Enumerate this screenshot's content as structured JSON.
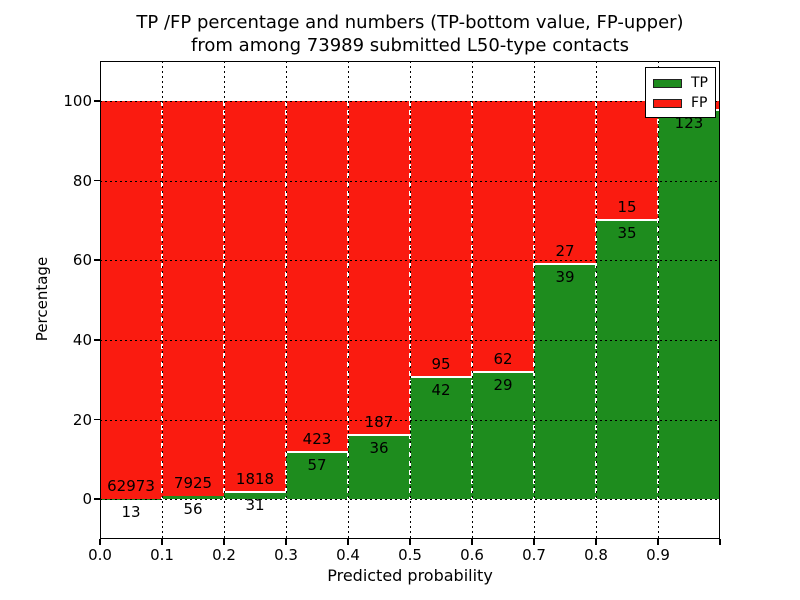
{
  "figure": {
    "title_line1": "TP /FP percentage and numbers (TP-bottom value, FP-upper)",
    "title_line2": "from among 73989 submitted L50-type contacts",
    "xlabel": "Predicted probability",
    "ylabel": "Percentage"
  },
  "legend": {
    "items": [
      {
        "label": "TP",
        "color": "#1e8c1e",
        "swatch": "tp-swatch"
      },
      {
        "label": "FP",
        "color": "#fa1b10",
        "swatch": "fp-swatch"
      }
    ],
    "position": "upper right"
  },
  "colors": {
    "tp": "#1e8c1e",
    "fp": "#fa1b10",
    "grid": "#000000",
    "frame": "#000000",
    "bar_edge": "#ffffff",
    "background": "#ffffff",
    "text": "#000000"
  },
  "chart_data": {
    "type": "bar",
    "stacked": true,
    "normalized_to_percent": true,
    "title": "TP /FP percentage and numbers (TP-bottom value, FP-upper) from among 73989 submitted L50-type contacts",
    "xlabel": "Predicted probability",
    "ylabel": "Percentage",
    "xlim": [
      0.0,
      1.0
    ],
    "ylim": [
      -10,
      110
    ],
    "yticks": [
      0,
      20,
      40,
      60,
      80,
      100
    ],
    "xtick_labels": [
      "0.0",
      "0.1",
      "0.2",
      "0.3",
      "0.4",
      "0.5",
      "0.6",
      "0.7",
      "0.8",
      "0.9"
    ],
    "grid": true,
    "legend_position": "upper right",
    "total_contacts": 73989,
    "series": [
      {
        "name": "TP",
        "color": "#1e8c1e"
      },
      {
        "name": "FP",
        "color": "#fa1b10"
      }
    ],
    "bins": [
      {
        "range": [
          0.0,
          0.1
        ],
        "tp": 13,
        "fp": 62973,
        "fp_label_visible": true
      },
      {
        "range": [
          0.1,
          0.2
        ],
        "tp": 56,
        "fp": 7925,
        "fp_label_visible": true
      },
      {
        "range": [
          0.2,
          0.3
        ],
        "tp": 31,
        "fp": 1818,
        "fp_label_visible": true
      },
      {
        "range": [
          0.3,
          0.4
        ],
        "tp": 57,
        "fp": 423,
        "fp_label_visible": true
      },
      {
        "range": [
          0.4,
          0.5
        ],
        "tp": 36,
        "fp": 187,
        "fp_label_visible": true
      },
      {
        "range": [
          0.5,
          0.6
        ],
        "tp": 42,
        "fp": 95,
        "fp_label_visible": true
      },
      {
        "range": [
          0.6,
          0.7
        ],
        "tp": 29,
        "fp": 62,
        "fp_label_visible": true
      },
      {
        "range": [
          0.7,
          0.8
        ],
        "tp": 39,
        "fp": 27,
        "fp_label_visible": true
      },
      {
        "range": [
          0.8,
          0.9
        ],
        "tp": 35,
        "fp": 15,
        "fp_label_visible": true
      },
      {
        "range": [
          0.9,
          1.0
        ],
        "tp": 123,
        "fp": 3,
        "fp_label_visible": false
      }
    ]
  }
}
